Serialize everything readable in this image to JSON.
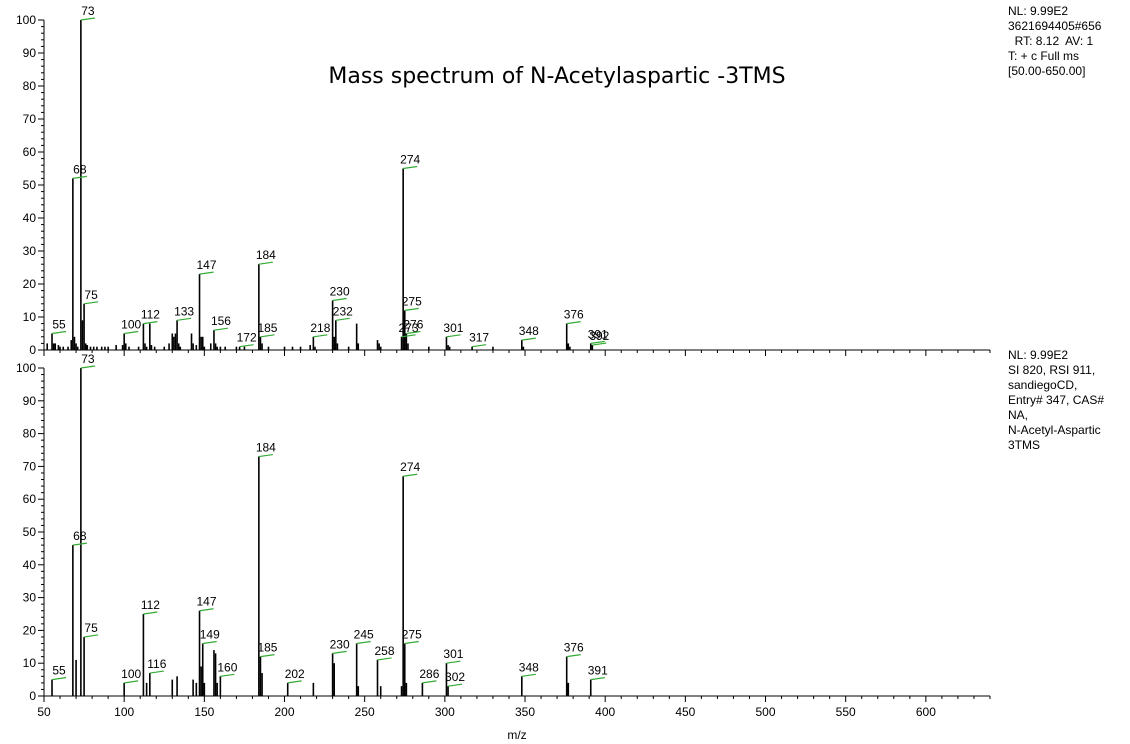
{
  "title": "Mass spectrum of N-Acetylaspartic -3TMS",
  "top_info": [
    "NL: 9.99E2",
    "3621694405#656",
    "  RT: 8.12  AV: 1",
    "T: + c Full ms",
    "[50.00-650.00]"
  ],
  "bottom_info": [
    "NL: 9.99E2",
    "SI 820, RSI 911,",
    "sandiegoCD,",
    "Entry# 347, CAS#",
    "NA,",
    "N-Acetyl-Aspartic",
    "3TMS"
  ],
  "colors": {
    "peak": "#000000",
    "label_tick": "#33aa33",
    "axis": "#000000"
  },
  "chart_data": [
    {
      "type": "bar",
      "panel": "top",
      "xlabel": "",
      "ylabel": "",
      "xlim": [
        50,
        640
      ],
      "ylim": [
        0,
        100
      ],
      "yticks": [
        0,
        10,
        20,
        30,
        40,
        50,
        60,
        70,
        80,
        90,
        100
      ],
      "peaks": [
        [
          52,
          2
        ],
        [
          55,
          5
        ],
        [
          56,
          2
        ],
        [
          57,
          2
        ],
        [
          59,
          1.5
        ],
        [
          60,
          1
        ],
        [
          62,
          1
        ],
        [
          65,
          1
        ],
        [
          67,
          3
        ],
        [
          68,
          52
        ],
        [
          69,
          4
        ],
        [
          70,
          2
        ],
        [
          71,
          1
        ],
        [
          73,
          100
        ],
        [
          74,
          9
        ],
        [
          75,
          14
        ],
        [
          76,
          2
        ],
        [
          77,
          1.5
        ],
        [
          79,
          1
        ],
        [
          81,
          1
        ],
        [
          83,
          1
        ],
        [
          86,
          1
        ],
        [
          88,
          1
        ],
        [
          90,
          1
        ],
        [
          95,
          1.5
        ],
        [
          99,
          1.5
        ],
        [
          100,
          5
        ],
        [
          101,
          2
        ],
        [
          103,
          1
        ],
        [
          109,
          1
        ],
        [
          112,
          8
        ],
        [
          113,
          2
        ],
        [
          114,
          1
        ],
        [
          116,
          8
        ],
        [
          117,
          1.5
        ],
        [
          119,
          1
        ],
        [
          125,
          1
        ],
        [
          128,
          2
        ],
        [
          130,
          5
        ],
        [
          131,
          4
        ],
        [
          132,
          5
        ],
        [
          133,
          9
        ],
        [
          134,
          2
        ],
        [
          135,
          1
        ],
        [
          142,
          5
        ],
        [
          143,
          2
        ],
        [
          145,
          1.5
        ],
        [
          147,
          23
        ],
        [
          148,
          4
        ],
        [
          149,
          4
        ],
        [
          150,
          1
        ],
        [
          154,
          2
        ],
        [
          156,
          6
        ],
        [
          157,
          2
        ],
        [
          158,
          1
        ],
        [
          160,
          1
        ],
        [
          163,
          1
        ],
        [
          170,
          1
        ],
        [
          172,
          1
        ],
        [
          175,
          1
        ],
        [
          184,
          26
        ],
        [
          185,
          4
        ],
        [
          186,
          2
        ],
        [
          190,
          1
        ],
        [
          200,
          1
        ],
        [
          205,
          1
        ],
        [
          210,
          1
        ],
        [
          216,
          1.5
        ],
        [
          218,
          4
        ],
        [
          219,
          1
        ],
        [
          230,
          15
        ],
        [
          231,
          4
        ],
        [
          232,
          9
        ],
        [
          233,
          2
        ],
        [
          240,
          1
        ],
        [
          245,
          8
        ],
        [
          246,
          2
        ],
        [
          258,
          3
        ],
        [
          259,
          2
        ],
        [
          260,
          1
        ],
        [
          273,
          4
        ],
        [
          274,
          55
        ],
        [
          275,
          12
        ],
        [
          276,
          5
        ],
        [
          277,
          2
        ],
        [
          290,
          1
        ],
        [
          301,
          4
        ],
        [
          302,
          1.5
        ],
        [
          303,
          1
        ],
        [
          317,
          1
        ],
        [
          330,
          1
        ],
        [
          348,
          3
        ],
        [
          349,
          1
        ],
        [
          376,
          8
        ],
        [
          377,
          2
        ],
        [
          378,
          1
        ],
        [
          391,
          2
        ],
        [
          392,
          1.5
        ]
      ],
      "labels": [
        [
          55,
          5,
          "55"
        ],
        [
          68,
          52,
          "68"
        ],
        [
          73,
          100,
          "73"
        ],
        [
          75,
          14,
          "75"
        ],
        [
          100,
          5,
          "100"
        ],
        [
          112,
          8,
          "112"
        ],
        [
          133,
          9,
          "133"
        ],
        [
          147,
          23,
          "147"
        ],
        [
          156,
          6,
          "156"
        ],
        [
          172,
          1,
          "172"
        ],
        [
          184,
          26,
          "184"
        ],
        [
          185,
          4,
          "185"
        ],
        [
          218,
          4,
          "218"
        ],
        [
          230,
          15,
          "230"
        ],
        [
          232,
          9,
          "232"
        ],
        [
          273,
          4,
          "273"
        ],
        [
          274,
          55,
          "274"
        ],
        [
          275,
          12,
          "275"
        ],
        [
          276,
          5,
          "276"
        ],
        [
          301,
          4,
          "301"
        ],
        [
          317,
          1,
          "317"
        ],
        [
          348,
          3,
          "348"
        ],
        [
          376,
          8,
          "376"
        ],
        [
          391,
          2,
          "391"
        ],
        [
          392,
          1.5,
          "392"
        ]
      ]
    },
    {
      "type": "bar",
      "panel": "bottom",
      "xlabel": "m/z",
      "ylabel": "",
      "xlim": [
        50,
        640
      ],
      "ylim": [
        0,
        100
      ],
      "xticks": [
        50,
        100,
        150,
        200,
        250,
        300,
        350,
        400,
        450,
        500,
        550,
        600
      ],
      "yticks": [
        0,
        10,
        20,
        30,
        40,
        50,
        60,
        70,
        80,
        90,
        100
      ],
      "peaks": [
        [
          55,
          5
        ],
        [
          68,
          46
        ],
        [
          70,
          11
        ],
        [
          73,
          100
        ],
        [
          75,
          18
        ],
        [
          100,
          4
        ],
        [
          112,
          25
        ],
        [
          114,
          4
        ],
        [
          116,
          7
        ],
        [
          130,
          5
        ],
        [
          133,
          6
        ],
        [
          143,
          5
        ],
        [
          145,
          4
        ],
        [
          147,
          26
        ],
        [
          148,
          9
        ],
        [
          149,
          16
        ],
        [
          150,
          4
        ],
        [
          156,
          14
        ],
        [
          157,
          13
        ],
        [
          158,
          4
        ],
        [
          160,
          6
        ],
        [
          184,
          73
        ],
        [
          185,
          12
        ],
        [
          186,
          7
        ],
        [
          202,
          4
        ],
        [
          218,
          4
        ],
        [
          230,
          13
        ],
        [
          231,
          10
        ],
        [
          245,
          16
        ],
        [
          246,
          3
        ],
        [
          258,
          11
        ],
        [
          260,
          3
        ],
        [
          273,
          3
        ],
        [
          274,
          67
        ],
        [
          275,
          16
        ],
        [
          276,
          4
        ],
        [
          286,
          4
        ],
        [
          301,
          10
        ],
        [
          302,
          3
        ],
        [
          348,
          6
        ],
        [
          376,
          12
        ],
        [
          377,
          4
        ],
        [
          391,
          5
        ]
      ],
      "labels": [
        [
          55,
          5,
          "55"
        ],
        [
          68,
          46,
          "68"
        ],
        [
          73,
          100,
          "73"
        ],
        [
          75,
          18,
          "75"
        ],
        [
          100,
          4,
          "100"
        ],
        [
          112,
          25,
          "112"
        ],
        [
          116,
          7,
          "116"
        ],
        [
          147,
          26,
          "147"
        ],
        [
          149,
          16,
          "149"
        ],
        [
          160,
          6,
          "160"
        ],
        [
          184,
          73,
          "184"
        ],
        [
          185,
          12,
          "185"
        ],
        [
          202,
          4,
          "202"
        ],
        [
          230,
          13,
          "230"
        ],
        [
          245,
          16,
          "245"
        ],
        [
          258,
          11,
          "258"
        ],
        [
          274,
          67,
          "274"
        ],
        [
          275,
          16,
          "275"
        ],
        [
          286,
          4,
          "286"
        ],
        [
          301,
          10,
          "301"
        ],
        [
          302,
          3,
          "302"
        ],
        [
          348,
          6,
          "348"
        ],
        [
          376,
          12,
          "376"
        ],
        [
          391,
          5,
          "391"
        ]
      ]
    }
  ]
}
